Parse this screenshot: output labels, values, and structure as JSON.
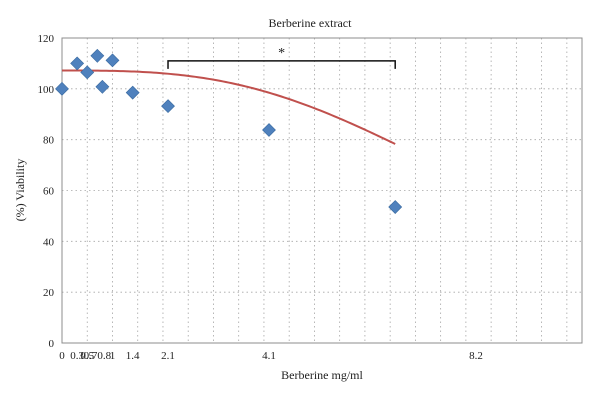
{
  "chart_data": {
    "type": "scatter",
    "title": "Berberine extract",
    "xlabel": "Berberine mg/ml",
    "ylabel": "(%) Viability",
    "xlim": [
      0,
      10.3
    ],
    "ylim": [
      0,
      120
    ],
    "x_ticks": [
      {
        "value": 0,
        "label": "0"
      },
      {
        "value": 0.3,
        "label": "0.3"
      },
      {
        "value": 0.5,
        "label": "0.5"
      },
      {
        "value": 0.7,
        "label": "0.70.8"
      },
      {
        "value": 1,
        "label": "1"
      },
      {
        "value": 1.4,
        "label": "1.4"
      },
      {
        "value": 2.1,
        "label": "2.1"
      },
      {
        "value": 4.1,
        "label": "4.1"
      },
      {
        "value": 8.2,
        "label": "8.2"
      }
    ],
    "y_ticks": [
      0,
      20,
      40,
      60,
      80,
      100,
      120
    ],
    "grid": true,
    "series": [
      {
        "type": "scatter",
        "color": "#4f81bd",
        "x": [
          0,
          0.3,
          0.5,
          0.7,
          0.8,
          1,
          1.4,
          2.1,
          4.1,
          6.6
        ],
        "y": [
          100,
          110,
          106.5,
          113,
          100.8,
          111.2,
          98.5,
          93.2,
          83.8,
          53.5
        ]
      },
      {
        "type": "line",
        "color": "#c0504d",
        "fit": {
          "top": 107.2,
          "bottom": 0,
          "ec50": 9.2,
          "hill": 3.0
        },
        "x_range": [
          0,
          6.6
        ]
      }
    ],
    "annotations": [
      {
        "type": "bracket",
        "x_start": 2.1,
        "x_end": 6.6,
        "y": 111,
        "label": "*"
      }
    ]
  }
}
